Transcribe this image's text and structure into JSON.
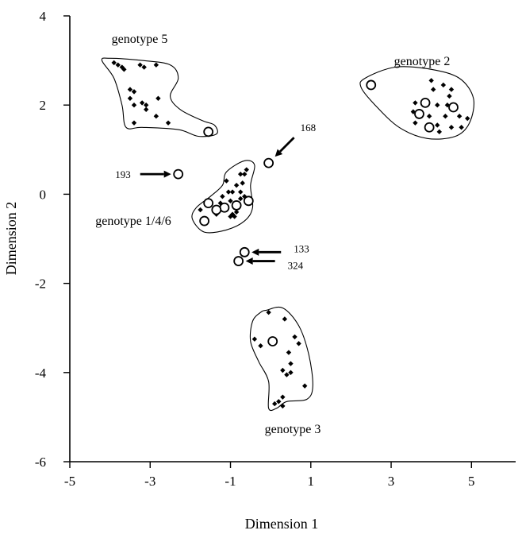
{
  "chart_data": {
    "type": "scatter",
    "title": "",
    "xlabel": "Dimension 1",
    "ylabel": "Dimension 2",
    "xlim": [
      -5,
      6.1
    ],
    "ylim": [
      -6,
      4
    ],
    "xticks": [
      -5,
      -3,
      -1,
      1,
      3,
      5
    ],
    "yticks": [
      -6,
      -4,
      -2,
      0,
      2,
      4
    ],
    "xtick_labels": [
      "-5",
      "-3",
      "-1",
      "1",
      "3",
      "5"
    ],
    "ytick_labels": [
      "-6",
      "-4",
      "-2",
      "0",
      "2",
      "4"
    ],
    "grid": false,
    "legend": "none",
    "colors": {
      "marks": "#000000",
      "background": "#ffffff"
    },
    "clusters": [
      {
        "name": "genotype 5",
        "outline": [
          [
            -4.0,
            3.05
          ],
          [
            -3.2,
            3.0
          ],
          [
            -2.5,
            2.9
          ],
          [
            -2.3,
            2.6
          ],
          [
            -2.5,
            2.2
          ],
          [
            -2.25,
            1.9
          ],
          [
            -1.7,
            1.65
          ],
          [
            -1.4,
            1.55
          ],
          [
            -1.35,
            1.35
          ],
          [
            -1.8,
            1.3
          ],
          [
            -2.3,
            1.45
          ],
          [
            -3.2,
            1.5
          ],
          [
            -3.6,
            1.5
          ],
          [
            -3.7,
            2.0
          ],
          [
            -3.9,
            2.6
          ],
          [
            -4.2,
            3.0
          ]
        ],
        "filled": [
          [
            -3.9,
            2.95
          ],
          [
            -3.8,
            2.9
          ],
          [
            -3.7,
            2.85
          ],
          [
            -3.65,
            2.8
          ],
          [
            -3.25,
            2.9
          ],
          [
            -3.15,
            2.85
          ],
          [
            -2.85,
            2.9
          ],
          [
            -3.5,
            2.35
          ],
          [
            -3.4,
            2.3
          ],
          [
            -3.5,
            2.15
          ],
          [
            -3.4,
            2.0
          ],
          [
            -3.2,
            2.05
          ],
          [
            -3.1,
            2.0
          ],
          [
            -3.1,
            1.9
          ],
          [
            -2.8,
            2.15
          ],
          [
            -2.85,
            1.75
          ],
          [
            -3.4,
            1.6
          ],
          [
            -2.55,
            1.6
          ]
        ],
        "open": [
          [
            -1.55,
            1.4
          ]
        ]
      },
      {
        "name": "genotype 2",
        "outline": [
          [
            2.35,
            2.6
          ],
          [
            3.1,
            2.85
          ],
          [
            4.0,
            2.8
          ],
          [
            4.7,
            2.6
          ],
          [
            5.05,
            2.15
          ],
          [
            4.95,
            1.6
          ],
          [
            4.6,
            1.3
          ],
          [
            3.9,
            1.25
          ],
          [
            3.2,
            1.5
          ],
          [
            2.6,
            2.0
          ],
          [
            2.25,
            2.4
          ]
        ],
        "filled": [
          [
            4.0,
            2.55
          ],
          [
            4.3,
            2.45
          ],
          [
            4.05,
            2.35
          ],
          [
            4.5,
            2.35
          ],
          [
            4.45,
            2.2
          ],
          [
            3.6,
            2.05
          ],
          [
            3.85,
            2.0
          ],
          [
            4.15,
            2.0
          ],
          [
            4.4,
            2.0
          ],
          [
            3.55,
            1.85
          ],
          [
            3.95,
            1.75
          ],
          [
            4.35,
            1.75
          ],
          [
            4.7,
            1.75
          ],
          [
            4.9,
            1.7
          ],
          [
            3.6,
            1.6
          ],
          [
            4.15,
            1.55
          ],
          [
            4.5,
            1.5
          ],
          [
            4.75,
            1.5
          ],
          [
            4.2,
            1.4
          ]
        ],
        "open": [
          [
            2.5,
            2.45
          ],
          [
            3.85,
            2.05
          ],
          [
            4.55,
            1.95
          ],
          [
            3.7,
            1.8
          ],
          [
            3.95,
            1.5
          ]
        ]
      },
      {
        "name": "genotype 1/4/6",
        "outline": [
          [
            -1.1,
            0.5
          ],
          [
            -0.65,
            0.75
          ],
          [
            -0.4,
            0.65
          ],
          [
            -0.5,
            0.2
          ],
          [
            -0.45,
            -0.3
          ],
          [
            -0.65,
            -0.6
          ],
          [
            -1.1,
            -0.8
          ],
          [
            -1.65,
            -0.85
          ],
          [
            -1.95,
            -0.55
          ],
          [
            -1.85,
            -0.3
          ],
          [
            -1.5,
            -0.05
          ],
          [
            -1.2,
            0.2
          ]
        ],
        "filled": [
          [
            -0.6,
            0.55
          ],
          [
            -0.65,
            0.45
          ],
          [
            -0.75,
            0.45
          ],
          [
            -1.1,
            0.3
          ],
          [
            -0.7,
            0.25
          ],
          [
            -0.85,
            0.2
          ],
          [
            -0.75,
            0.05
          ],
          [
            -0.95,
            0.05
          ],
          [
            -1.05,
            0.05
          ],
          [
            -0.65,
            -0.05
          ],
          [
            -0.75,
            -0.1
          ],
          [
            -1.2,
            -0.05
          ],
          [
            -1.0,
            -0.15
          ],
          [
            -1.25,
            -0.2
          ],
          [
            -1.15,
            -0.25
          ],
          [
            -0.85,
            -0.2
          ],
          [
            -1.75,
            -0.35
          ],
          [
            -1.35,
            -0.45
          ],
          [
            -0.95,
            -0.45
          ],
          [
            -0.9,
            -0.5
          ],
          [
            -1.0,
            -0.5
          ],
          [
            -0.85,
            -0.4
          ]
        ],
        "open": [
          [
            -1.55,
            -0.2
          ],
          [
            -1.15,
            -0.3
          ],
          [
            -0.85,
            -0.25
          ],
          [
            -0.55,
            -0.15
          ],
          [
            -1.35,
            -0.35
          ],
          [
            -1.65,
            -0.6
          ]
        ]
      },
      {
        "name": "genotype 3",
        "outline": [
          [
            -0.1,
            -2.6
          ],
          [
            0.3,
            -2.55
          ],
          [
            0.7,
            -2.95
          ],
          [
            0.95,
            -3.6
          ],
          [
            1.05,
            -4.3
          ],
          [
            0.9,
            -4.6
          ],
          [
            0.4,
            -4.65
          ],
          [
            0.15,
            -4.8
          ],
          [
            -0.05,
            -4.8
          ],
          [
            -0.05,
            -4.2
          ],
          [
            -0.3,
            -3.75
          ],
          [
            -0.5,
            -3.3
          ],
          [
            -0.45,
            -2.85
          ],
          [
            -0.25,
            -2.65
          ]
        ],
        "filled": [
          [
            -0.05,
            -2.65
          ],
          [
            0.35,
            -2.8
          ],
          [
            -0.4,
            -3.25
          ],
          [
            -0.25,
            -3.4
          ],
          [
            0.6,
            -3.2
          ],
          [
            0.7,
            -3.35
          ],
          [
            0.45,
            -3.55
          ],
          [
            0.5,
            -3.8
          ],
          [
            0.3,
            -3.95
          ],
          [
            0.4,
            -4.05
          ],
          [
            0.5,
            -4.0
          ],
          [
            0.85,
            -4.3
          ],
          [
            0.3,
            -4.55
          ],
          [
            0.2,
            -4.65
          ],
          [
            0.1,
            -4.7
          ],
          [
            0.3,
            -4.75
          ]
        ],
        "open": [
          [
            0.05,
            -3.3
          ]
        ]
      }
    ],
    "outliers": [
      {
        "label": "193",
        "x": -2.3,
        "y": 0.45
      },
      {
        "label": "168",
        "x": -0.05,
        "y": 0.7
      },
      {
        "label": "133",
        "x": -0.65,
        "y": -1.3
      },
      {
        "label": "324",
        "x": -0.8,
        "y": -1.5
      }
    ],
    "cluster_label_text": [
      "genotype 5",
      "genotype 2",
      "genotype 1/4/6",
      "genotype 3"
    ]
  }
}
